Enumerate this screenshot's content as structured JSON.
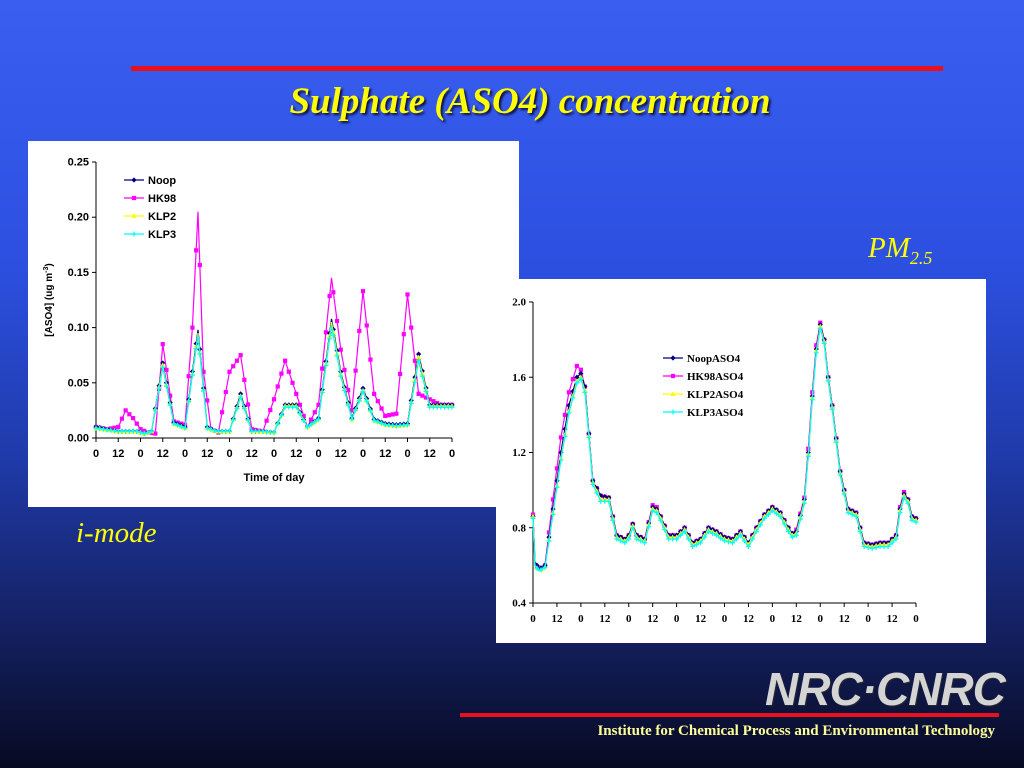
{
  "slide": {
    "title": "Sulphate (ASO4) concentration",
    "caption_left": "i-mode",
    "caption_right_main": "PM",
    "caption_right_sub": "2.5",
    "logo_text": "NRC·CNRC",
    "footer": "Institute for Chemical Process and Environmental Technology"
  },
  "colors": {
    "rule": "#e8101c",
    "title": "#ffff00",
    "Noop": "#000080",
    "HK98": "#ff00ff",
    "KLP2": "#ffff00",
    "KLP3": "#00ffff"
  },
  "chart_data": [
    {
      "type": "line",
      "title": "",
      "xlabel": "Time of day",
      "ylabel": "[ASO4] (ug m-3)",
      "ylabel_main": "[ASO4] (ug m",
      "ylabel_sup": "-3",
      "ylabel_end": ")",
      "ylim": [
        0,
        0.25
      ],
      "yticks": [
        "0.00",
        "0.05",
        "0.10",
        "0.15",
        "0.20",
        "0.25"
      ],
      "xlim": [
        0,
        192
      ],
      "xticks": [
        0,
        12,
        24,
        36,
        48,
        60,
        72,
        84,
        96,
        108,
        120,
        132,
        144,
        156,
        168,
        180,
        192
      ],
      "xtick_labels": [
        "0",
        "12",
        "0",
        "12",
        "0",
        "12",
        "0",
        "12",
        "0",
        "12",
        "0",
        "12",
        "0",
        "12",
        "0",
        "12",
        "0"
      ],
      "grid": false,
      "legend": "top-left",
      "series": [
        {
          "name": "Noop",
          "x": [
            0,
            12,
            22,
            26,
            30,
            36,
            42,
            48,
            55,
            60,
            65,
            72,
            78,
            84,
            90,
            96,
            102,
            108,
            114,
            120,
            127,
            132,
            138,
            144,
            150,
            156,
            162,
            168,
            174,
            180,
            186,
            192
          ],
          "y": [
            0.01,
            0.006,
            0.006,
            0.004,
            0.006,
            0.068,
            0.014,
            0.01,
            0.098,
            0.01,
            0.006,
            0.006,
            0.04,
            0.006,
            0.006,
            0.005,
            0.03,
            0.03,
            0.01,
            0.018,
            0.108,
            0.06,
            0.018,
            0.045,
            0.017,
            0.013,
            0.012,
            0.013,
            0.076,
            0.03,
            0.03,
            0.03
          ]
        },
        {
          "name": "HK98",
          "x": [
            0,
            6,
            12,
            16,
            20,
            24,
            28,
            32,
            36,
            42,
            48,
            52,
            55,
            58,
            62,
            66,
            72,
            78,
            84,
            90,
            96,
            102,
            108,
            114,
            120,
            127,
            132,
            138,
            144,
            150,
            156,
            162,
            168,
            174,
            180,
            186,
            192
          ],
          "y": [
            0.01,
            0.008,
            0.01,
            0.025,
            0.018,
            0.008,
            0.005,
            0.004,
            0.085,
            0.015,
            0.012,
            0.1,
            0.205,
            0.06,
            0.008,
            0.005,
            0.06,
            0.075,
            0.008,
            0.006,
            0.035,
            0.07,
            0.04,
            0.01,
            0.03,
            0.145,
            0.08,
            0.025,
            0.133,
            0.04,
            0.02,
            0.022,
            0.13,
            0.04,
            0.035,
            0.03,
            0.03
          ]
        },
        {
          "name": "KLP2",
          "x": [
            0,
            12,
            22,
            26,
            30,
            36,
            42,
            48,
            55,
            60,
            65,
            72,
            78,
            84,
            90,
            96,
            102,
            108,
            114,
            120,
            127,
            132,
            138,
            144,
            150,
            156,
            162,
            168,
            174,
            180,
            186,
            192
          ],
          "y": [
            0.009,
            0.006,
            0.006,
            0.004,
            0.006,
            0.066,
            0.013,
            0.009,
            0.095,
            0.009,
            0.006,
            0.006,
            0.038,
            0.006,
            0.006,
            0.005,
            0.029,
            0.029,
            0.01,
            0.017,
            0.105,
            0.058,
            0.017,
            0.043,
            0.016,
            0.012,
            0.011,
            0.012,
            0.073,
            0.029,
            0.029,
            0.029
          ]
        },
        {
          "name": "KLP3",
          "x": [
            0,
            12,
            22,
            26,
            30,
            36,
            42,
            48,
            55,
            60,
            65,
            72,
            78,
            84,
            90,
            96,
            102,
            108,
            114,
            120,
            127,
            132,
            138,
            144,
            150,
            156,
            162,
            168,
            174,
            180,
            186,
            192
          ],
          "y": [
            0.009,
            0.006,
            0.006,
            0.004,
            0.006,
            0.064,
            0.013,
            0.009,
            0.093,
            0.009,
            0.006,
            0.006,
            0.037,
            0.006,
            0.006,
            0.005,
            0.028,
            0.028,
            0.01,
            0.017,
            0.102,
            0.056,
            0.017,
            0.042,
            0.016,
            0.012,
            0.011,
            0.012,
            0.07,
            0.028,
            0.028,
            0.028
          ]
        }
      ]
    },
    {
      "type": "line",
      "title": "",
      "xlabel": "",
      "ylabel": "",
      "ylim": [
        0.4,
        2.0
      ],
      "yticks": [
        "0.4",
        "0.8",
        "1.2",
        "1.6",
        "2.0"
      ],
      "xlim": [
        0,
        192
      ],
      "xticks": [
        0,
        12,
        24,
        36,
        48,
        60,
        72,
        84,
        96,
        108,
        120,
        132,
        144,
        156,
        168,
        180,
        192
      ],
      "xtick_labels": [
        "0",
        "12",
        "0",
        "12",
        "0",
        "12",
        "0",
        "12",
        "0",
        "12",
        "0",
        "12",
        "0",
        "12",
        "0",
        "12",
        "0"
      ],
      "grid": false,
      "legend": "center",
      "series": [
        {
          "name": "NoopASO4",
          "x": [
            0,
            1,
            3,
            6,
            10,
            14,
            18,
            22,
            24,
            26,
            28,
            30,
            34,
            38,
            42,
            44,
            46,
            48,
            50,
            52,
            56,
            60,
            62,
            64,
            68,
            72,
            76,
            80,
            84,
            88,
            92,
            96,
            100,
            104,
            108,
            112,
            116,
            120,
            124,
            128,
            130,
            132,
            136,
            138,
            140,
            142,
            144,
            146,
            148,
            150,
            154,
            158,
            162,
            166,
            170,
            174,
            178,
            182,
            184,
            186,
            188,
            190,
            192
          ],
          "y": [
            0.86,
            0.62,
            0.58,
            0.6,
            0.9,
            1.2,
            1.45,
            1.6,
            1.62,
            1.55,
            1.3,
            1.05,
            0.97,
            0.96,
            0.76,
            0.75,
            0.74,
            0.76,
            0.82,
            0.76,
            0.74,
            0.91,
            0.9,
            0.86,
            0.76,
            0.76,
            0.8,
            0.72,
            0.74,
            0.8,
            0.78,
            0.75,
            0.74,
            0.78,
            0.72,
            0.8,
            0.87,
            0.91,
            0.88,
            0.8,
            0.77,
            0.78,
            0.95,
            1.2,
            1.5,
            1.75,
            1.88,
            1.8,
            1.6,
            1.45,
            1.1,
            0.9,
            0.88,
            0.72,
            0.71,
            0.72,
            0.72,
            0.76,
            0.9,
            0.98,
            0.95,
            0.86,
            0.85
          ]
        },
        {
          "name": "HK98ASO4",
          "x": [
            0,
            1,
            3,
            6,
            10,
            14,
            18,
            22,
            24,
            26,
            28,
            30,
            34,
            38,
            42,
            44,
            46,
            48,
            50,
            52,
            56,
            60,
            62,
            64,
            68,
            72,
            76,
            80,
            84,
            88,
            92,
            96,
            100,
            104,
            108,
            112,
            116,
            120,
            124,
            128,
            130,
            132,
            136,
            138,
            140,
            142,
            144,
            146,
            148,
            150,
            154,
            158,
            162,
            166,
            170,
            174,
            178,
            182,
            184,
            186,
            188,
            190,
            192
          ],
          "y": [
            0.87,
            0.6,
            0.58,
            0.6,
            0.95,
            1.28,
            1.52,
            1.66,
            1.64,
            1.55,
            1.3,
            1.05,
            0.97,
            0.96,
            0.76,
            0.75,
            0.74,
            0.76,
            0.82,
            0.76,
            0.74,
            0.92,
            0.91,
            0.86,
            0.76,
            0.76,
            0.8,
            0.72,
            0.74,
            0.8,
            0.78,
            0.75,
            0.74,
            0.78,
            0.72,
            0.8,
            0.87,
            0.91,
            0.88,
            0.8,
            0.77,
            0.79,
            0.96,
            1.22,
            1.52,
            1.77,
            1.89,
            1.8,
            1.6,
            1.45,
            1.1,
            0.9,
            0.88,
            0.72,
            0.71,
            0.72,
            0.72,
            0.76,
            0.91,
            0.99,
            0.95,
            0.86,
            0.85
          ]
        },
        {
          "name": "KLP2ASO4",
          "x": [
            0,
            1,
            3,
            6,
            10,
            14,
            18,
            22,
            24,
            26,
            28,
            30,
            34,
            38,
            42,
            44,
            46,
            48,
            50,
            52,
            56,
            60,
            62,
            64,
            68,
            72,
            76,
            80,
            84,
            88,
            92,
            96,
            100,
            104,
            108,
            112,
            116,
            120,
            124,
            128,
            130,
            132,
            136,
            138,
            140,
            142,
            144,
            146,
            148,
            150,
            154,
            158,
            162,
            166,
            170,
            174,
            178,
            182,
            184,
            186,
            188,
            190,
            192
          ],
          "y": [
            0.86,
            0.6,
            0.57,
            0.59,
            0.88,
            1.17,
            1.42,
            1.58,
            1.6,
            1.53,
            1.29,
            1.04,
            0.95,
            0.95,
            0.75,
            0.74,
            0.73,
            0.75,
            0.81,
            0.75,
            0.73,
            0.9,
            0.89,
            0.85,
            0.75,
            0.75,
            0.79,
            0.71,
            0.73,
            0.79,
            0.77,
            0.74,
            0.73,
            0.77,
            0.71,
            0.79,
            0.86,
            0.9,
            0.87,
            0.79,
            0.76,
            0.77,
            0.94,
            1.19,
            1.49,
            1.74,
            1.87,
            1.79,
            1.59,
            1.44,
            1.09,
            0.89,
            0.87,
            0.71,
            0.7,
            0.71,
            0.71,
            0.75,
            0.89,
            0.97,
            0.94,
            0.85,
            0.84
          ]
        },
        {
          "name": "KLP3ASO4",
          "x": [
            0,
            1,
            3,
            6,
            10,
            14,
            18,
            22,
            24,
            26,
            28,
            30,
            34,
            38,
            42,
            44,
            46,
            48,
            50,
            52,
            56,
            60,
            62,
            64,
            68,
            72,
            76,
            80,
            84,
            88,
            92,
            96,
            100,
            104,
            108,
            112,
            116,
            120,
            124,
            128,
            130,
            132,
            136,
            138,
            140,
            142,
            144,
            146,
            148,
            150,
            154,
            158,
            162,
            166,
            170,
            174,
            178,
            182,
            184,
            186,
            188,
            190,
            192
          ],
          "y": [
            0.85,
            0.6,
            0.57,
            0.59,
            0.87,
            1.16,
            1.41,
            1.57,
            1.59,
            1.52,
            1.28,
            1.03,
            0.94,
            0.94,
            0.74,
            0.73,
            0.72,
            0.74,
            0.8,
            0.74,
            0.72,
            0.89,
            0.88,
            0.84,
            0.74,
            0.74,
            0.78,
            0.7,
            0.72,
            0.78,
            0.76,
            0.73,
            0.72,
            0.76,
            0.7,
            0.78,
            0.85,
            0.89,
            0.86,
            0.78,
            0.75,
            0.76,
            0.93,
            1.18,
            1.48,
            1.73,
            1.86,
            1.78,
            1.58,
            1.43,
            1.08,
            0.88,
            0.86,
            0.7,
            0.69,
            0.7,
            0.7,
            0.74,
            0.88,
            0.96,
            0.93,
            0.84,
            0.83
          ]
        }
      ]
    }
  ]
}
